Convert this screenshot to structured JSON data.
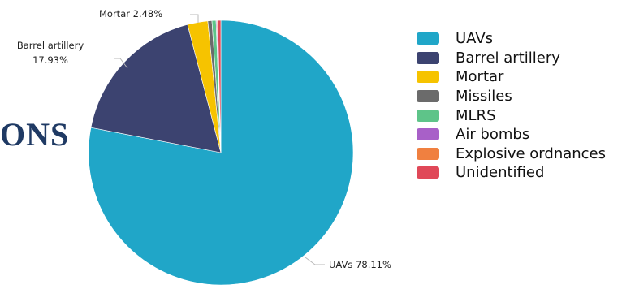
{
  "heading_fragment": "ONS",
  "chart_data": {
    "type": "pie",
    "categories": [
      "UAVs",
      "Barrel artillery",
      "Mortar",
      "Missiles",
      "MLRS",
      "Air bombs",
      "Explosive ordnances",
      "Unidentified"
    ],
    "values": [
      78.11,
      17.93,
      2.48,
      0.5,
      0.5,
      0.1,
      0.1,
      0.38
    ],
    "colors": [
      "#20a6c8",
      "#3c4370",
      "#f6c300",
      "#6b6b6b",
      "#5ec489",
      "#a860c8",
      "#f08040",
      "#e04858"
    ],
    "labels": [
      {
        "category": "UAVs",
        "text": "UAVs 78.11%"
      },
      {
        "category": "Barrel artillery",
        "text": "Barrel artillery",
        "value_text": "17.93%"
      },
      {
        "category": "Mortar",
        "text": "Mortar 2.48%"
      }
    ],
    "legend": [
      "UAVs",
      "Barrel artillery",
      "Mortar",
      "Missiles",
      "MLRS",
      "Air bombs",
      "Explosive ordnances",
      "Unidentified"
    ],
    "legend_position": "right"
  }
}
